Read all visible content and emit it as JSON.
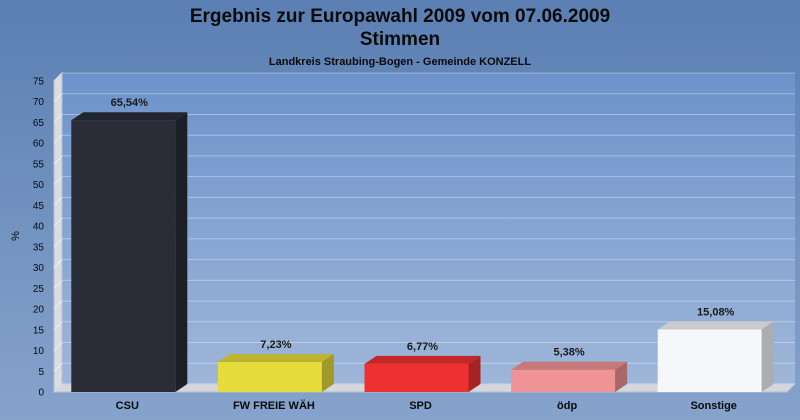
{
  "chart_data": {
    "type": "bar",
    "title": "Ergebnis zur Europawahl 2009 vom 07.06.2009",
    "title2": "Stimmen",
    "subtitle": "Landkreis Straubing-Bogen - Gemeinde KONZELL",
    "ylabel": "%",
    "xlabel": "",
    "ylim": [
      0,
      75
    ],
    "ytick_step": 5,
    "grid": true,
    "categories": [
      "CSU",
      "FW FREIE WÄH",
      "SPD",
      "ödp",
      "Sonstige"
    ],
    "values": [
      65.54,
      7.23,
      6.77,
      5.38,
      15.08
    ],
    "value_labels": [
      "65,54%",
      "7,23%",
      "6,77%",
      "5,38%",
      "15,08%"
    ],
    "colors": [
      "#2a2d38",
      "#e6dc3c",
      "#ee3030",
      "#f09396",
      "#f6f7fb"
    ]
  }
}
